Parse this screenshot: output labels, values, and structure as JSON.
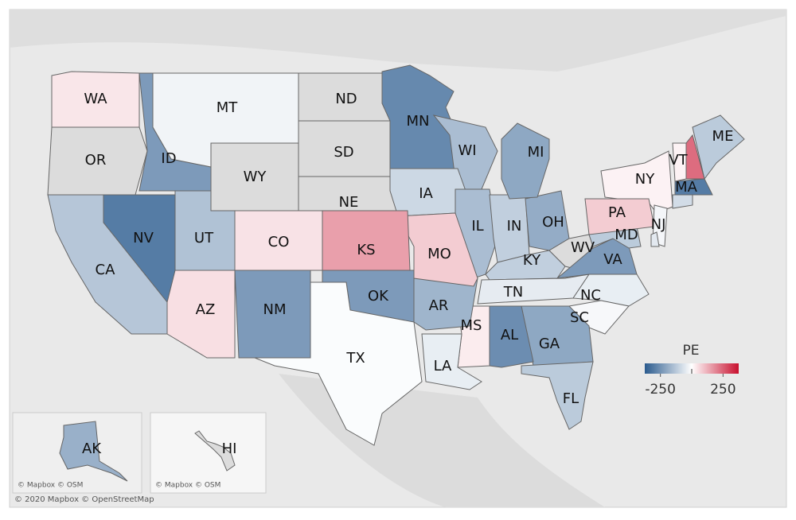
{
  "map": {
    "legend": {
      "title": "PE",
      "range": [
        -375,
        375
      ],
      "ticks": [
        -250,
        250
      ],
      "colors": [
        "#2b5b8e",
        "#ffffff",
        "#c8102e"
      ],
      "null_color": "#dcdcdc"
    },
    "states": [
      {
        "label": "WA",
        "value": 40
      },
      {
        "label": "OR",
        "value": null
      },
      {
        "label": "ID",
        "value": -230
      },
      {
        "label": "MT",
        "value": -25
      },
      {
        "label": "WY",
        "value": null
      },
      {
        "label": "ND",
        "value": null
      },
      {
        "label": "SD",
        "value": null
      },
      {
        "label": "NE",
        "value": null
      },
      {
        "label": "MN",
        "value": -270
      },
      {
        "label": "WI",
        "value": -150
      },
      {
        "label": "IA",
        "value": -90
      },
      {
        "label": "IL",
        "value": -150
      },
      {
        "label": "IN",
        "value": -110
      },
      {
        "label": "OH",
        "value": -190
      },
      {
        "label": "MI",
        "value": -200
      },
      {
        "label": "KY",
        "value": -110
      },
      {
        "label": "TN",
        "value": -45
      },
      {
        "label": "WV",
        "value": null
      },
      {
        "label": "VA",
        "value": -230
      },
      {
        "label": "MD",
        "value": -120
      },
      {
        "label": "NC",
        "value": -40
      },
      {
        "label": "SC",
        "value": -15
      },
      {
        "label": "GA",
        "value": -200
      },
      {
        "label": "AL",
        "value": -260
      },
      {
        "label": "MS",
        "value": 30
      },
      {
        "label": "LA",
        "value": -40
      },
      {
        "label": "AR",
        "value": -170
      },
      {
        "label": "MO",
        "value": 80
      },
      {
        "label": "KS",
        "value": 150
      },
      {
        "label": "OK",
        "value": -230
      },
      {
        "label": "TX",
        "value": -8
      },
      {
        "label": "NM",
        "value": -230
      },
      {
        "label": "CO",
        "value": 45
      },
      {
        "label": "UT",
        "value": -140
      },
      {
        "label": "AZ",
        "value": 50
      },
      {
        "label": "NV",
        "value": -300
      },
      {
        "label": "CA",
        "value": -130
      },
      {
        "label": "NY",
        "value": 20
      },
      {
        "label": "PA",
        "value": 80
      },
      {
        "label": "NJ",
        "value": -20
      },
      {
        "label": "VT",
        "value": 20
      },
      {
        "label": "ME",
        "value": -120
      },
      {
        "label": "MA",
        "value": -300
      },
      {
        "label": "FL",
        "value": -120
      },
      {
        "label": "AK",
        "value": -180
      },
      {
        "label": "HI",
        "value": null
      },
      {
        "label": null,
        "value": 230
      },
      {
        "label": null,
        "value": -80
      },
      {
        "label": null,
        "value": -50
      }
    ],
    "inset_attributions": [
      "© Mapbox © OSM",
      "© Mapbox © OSM"
    ],
    "attribution": "© 2020 Mapbox © OpenStreetMap"
  }
}
